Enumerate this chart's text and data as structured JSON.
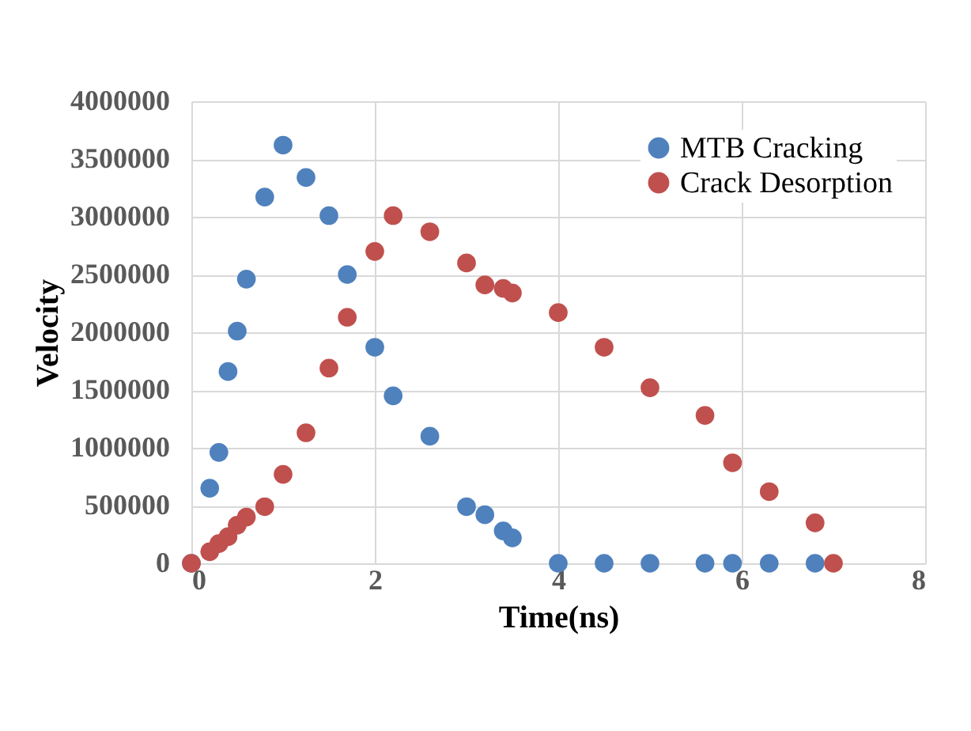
{
  "chart_data": {
    "type": "scatter",
    "xlabel": "Time(ns)",
    "ylabel": "Velocity",
    "xlim": [
      0,
      8
    ],
    "xticks": [
      0,
      2,
      4,
      6,
      8
    ],
    "ylim": [
      0,
      4000000
    ],
    "yticks": [
      0,
      500000,
      1000000,
      1500000,
      2000000,
      2500000,
      3000000,
      3500000,
      4000000
    ],
    "grid": true,
    "legend": "top right",
    "marker": "circle",
    "series": [
      {
        "name": "MTB Cracking",
        "color": "#4f81bd",
        "x": [
          0,
          0.2,
          0.3,
          0.4,
          0.5,
          0.6,
          0.8,
          1.0,
          1.25,
          1.5,
          1.7,
          2.0,
          2.2,
          2.6,
          3.0,
          3.2,
          3.4,
          3.5,
          4.0,
          4.5,
          5.0,
          5.6,
          5.9,
          6.3,
          6.8
        ],
        "values": [
          0,
          650000,
          960000,
          1660000,
          2010000,
          2460000,
          3170000,
          3620000,
          3340000,
          3010000,
          2500000,
          1870000,
          1450000,
          1100000,
          490000,
          420000,
          280000,
          220000,
          0,
          0,
          0,
          0,
          0,
          0,
          0
        ]
      },
      {
        "name": "Crack Desorption",
        "color": "#c0504d",
        "x": [
          0,
          0.2,
          0.3,
          0.4,
          0.5,
          0.6,
          0.8,
          1.0,
          1.25,
          1.5,
          1.7,
          2.0,
          2.2,
          2.6,
          3.0,
          3.2,
          3.4,
          3.5,
          4.0,
          4.5,
          5.0,
          5.6,
          5.9,
          6.3,
          6.8,
          7.0
        ],
        "values": [
          0,
          100000,
          170000,
          230000,
          330000,
          400000,
          490000,
          770000,
          1130000,
          1690000,
          2130000,
          2700000,
          3010000,
          2870000,
          2600000,
          2410000,
          2380000,
          2340000,
          2170000,
          1870000,
          1520000,
          1280000,
          870000,
          620000,
          350000,
          0
        ]
      }
    ]
  }
}
